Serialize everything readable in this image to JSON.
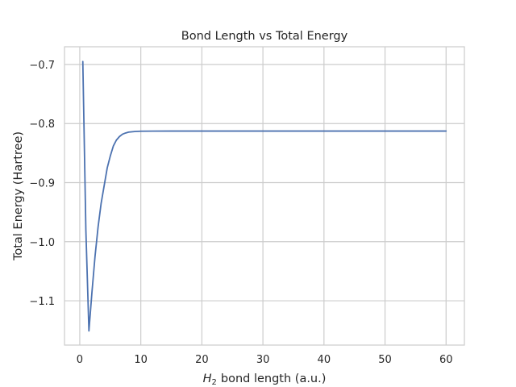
{
  "chart_data": {
    "type": "line",
    "title": "Bond Length vs Total Energy",
    "xlabel": "bond length (a.u.)",
    "xlabel_math_symbol": "H",
    "xlabel_math_subscript": "2",
    "ylabel": "Total Energy (Hartree)",
    "xlim": [
      -2.5,
      63.0
    ],
    "ylim": [
      -1.175,
      -0.67
    ],
    "x_ticks": [
      {
        "value": 0,
        "label": "0"
      },
      {
        "value": 10,
        "label": "10"
      },
      {
        "value": 20,
        "label": "20"
      },
      {
        "value": 30,
        "label": "30"
      },
      {
        "value": 40,
        "label": "40"
      },
      {
        "value": 50,
        "label": "50"
      },
      {
        "value": 60,
        "label": "60"
      }
    ],
    "y_ticks": [
      {
        "value": -0.7,
        "label": "−0.7"
      },
      {
        "value": -0.8,
        "label": "−0.8"
      },
      {
        "value": -0.9,
        "label": "−0.9"
      },
      {
        "value": -1.0,
        "label": "−1.0"
      },
      {
        "value": -1.1,
        "label": "−1.1"
      }
    ],
    "grid": true,
    "series": [
      {
        "color": "#4c72b0",
        "x": [
          0.5,
          1.0,
          1.5,
          2.0,
          2.5,
          3.0,
          3.5,
          4.0,
          4.5,
          5.0,
          5.5,
          6.0,
          6.5,
          7.0,
          7.5,
          8.0,
          9.0,
          10.0,
          12.0,
          15.0,
          20.0,
          30.0,
          40.0,
          50.0,
          60.0
        ],
        "y": [
          -0.695,
          -0.98,
          -1.151,
          -1.085,
          -1.025,
          -0.975,
          -0.935,
          -0.905,
          -0.875,
          -0.855,
          -0.838,
          -0.828,
          -0.822,
          -0.818,
          -0.816,
          -0.8145,
          -0.8135,
          -0.813,
          -0.8128,
          -0.8127,
          -0.8127,
          -0.8127,
          -0.8127,
          -0.8127,
          -0.8127
        ]
      }
    ]
  }
}
